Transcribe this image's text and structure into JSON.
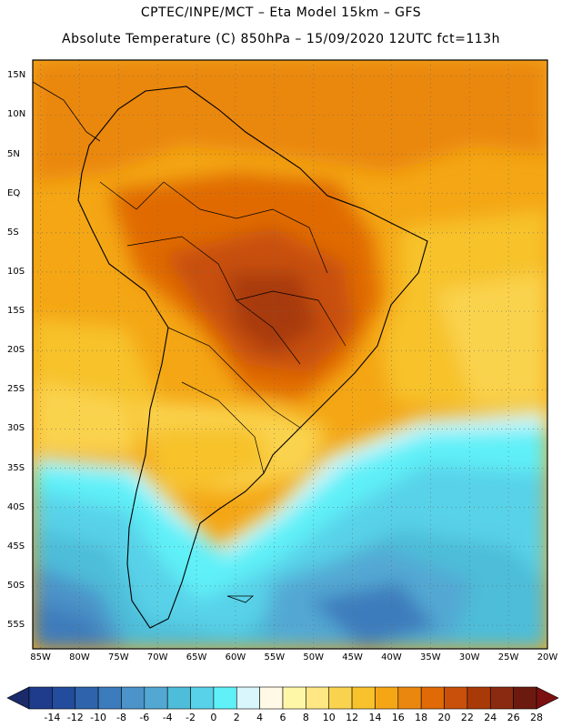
{
  "header": {
    "line1": "CPTEC/INPE/MCT –   Eta Model 15km – GFS",
    "line2": "Absolute Temperature (C) 850hPa – 15/09/2020 12UTC fct=113h"
  },
  "map": {
    "lat_labels": [
      "15N",
      "10N",
      "5N",
      "EQ",
      "5S",
      "10S",
      "15S",
      "20S",
      "25S",
      "30S",
      "35S",
      "40S",
      "45S",
      "50S",
      "55S"
    ],
    "lon_labels": [
      "85W",
      "80W",
      "75W",
      "70W",
      "65W",
      "60W",
      "55W",
      "50W",
      "45W",
      "40W",
      "35W",
      "30W",
      "25W",
      "20W"
    ],
    "lat_values": [
      15,
      10,
      5,
      0,
      -5,
      -10,
      -15,
      -20,
      -25,
      -30,
      -35,
      -40,
      -45,
      -50,
      -55
    ],
    "lon_values": [
      -85,
      -80,
      -75,
      -70,
      -65,
      -60,
      -55,
      -50,
      -45,
      -40,
      -35,
      -30,
      -25,
      -20
    ],
    "lat_range": [
      -58,
      17
    ],
    "lon_range": [
      -86,
      -20
    ]
  },
  "colorbar": {
    "labels": [
      "-14",
      "-12",
      "-10",
      "-8",
      "-6",
      "-4",
      "-2",
      "0",
      "2",
      "4",
      "6",
      "8",
      "10",
      "12",
      "14",
      "16",
      "18",
      "20",
      "22",
      "24",
      "26",
      "28"
    ],
    "colors": [
      "#1f3c8c",
      "#234c9c",
      "#2f64ac",
      "#3c7bbc",
      "#4b93c8",
      "#52a8d3",
      "#4ebdd9",
      "#58d2e8",
      "#5ff0f8",
      "#d8f6fb",
      "#fff9e6",
      "#fff7a8",
      "#ffe784",
      "#fad34e",
      "#f7c22c",
      "#f4a614",
      "#ea870e",
      "#e06a06",
      "#c8500a",
      "#a83a08",
      "#8a2a10",
      "#6c1a10"
    ],
    "under_color": "#1a2a6a",
    "over_color": "#7a1010"
  }
}
